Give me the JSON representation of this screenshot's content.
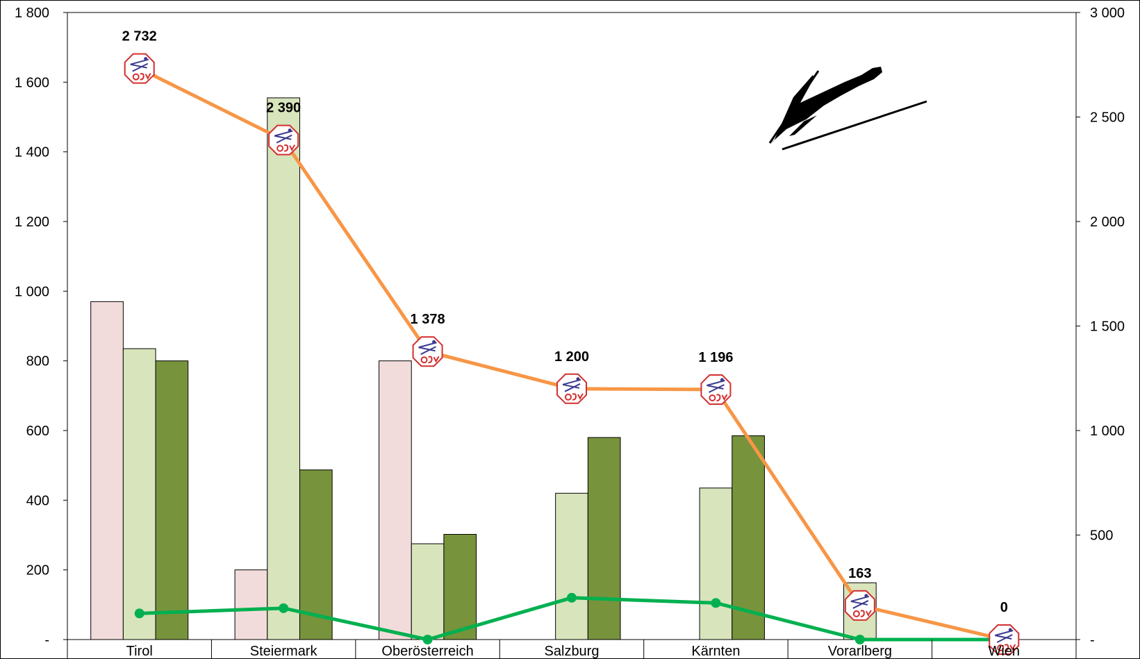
{
  "chart_data": {
    "type": "bar",
    "categories": [
      "Tirol",
      "Steiermark",
      "Oberösterreich",
      "Salzburg",
      "Kärnten",
      "Vorarlberg",
      "Wien"
    ],
    "series": [
      {
        "kind": "bar",
        "axis": "left",
        "color": "#f2dcdb",
        "values": [
          970,
          200,
          800,
          0,
          0,
          0,
          0
        ]
      },
      {
        "kind": "bar",
        "axis": "left",
        "color": "#d8e4bc",
        "values": [
          835,
          1555,
          275,
          420,
          435,
          163,
          0
        ]
      },
      {
        "kind": "bar",
        "axis": "left",
        "color": "#77933c",
        "values": [
          800,
          487,
          302,
          580,
          585,
          0,
          0
        ]
      },
      {
        "kind": "line",
        "axis": "left",
        "color": "#00b050",
        "values": [
          75,
          90,
          0,
          120,
          105,
          0,
          0
        ]
      },
      {
        "kind": "line",
        "axis": "right",
        "color": "#f79646",
        "marker": "osv-logo-icon",
        "values": [
          2732,
          2390,
          1378,
          1200,
          1196,
          163,
          0
        ],
        "labels": [
          "2 732",
          "2 390",
          "1 378",
          "1 200",
          "1 196",
          "163",
          "0"
        ]
      }
    ],
    "left_axis": {
      "min": 0,
      "max": 1800,
      "step": 200,
      "tick_labels": [
        "-",
        "200",
        "400",
        "600",
        "800",
        "1 000",
        "1 200",
        "1 400",
        "1 600",
        "1 800"
      ]
    },
    "right_axis": {
      "min": 0,
      "max": 3000,
      "step": 500,
      "tick_labels": [
        "-",
        "500",
        "1 000",
        "1 500",
        "2 000",
        "2 500",
        "3 000"
      ]
    },
    "decoration": "ski-jumper-silhouette-icon"
  }
}
